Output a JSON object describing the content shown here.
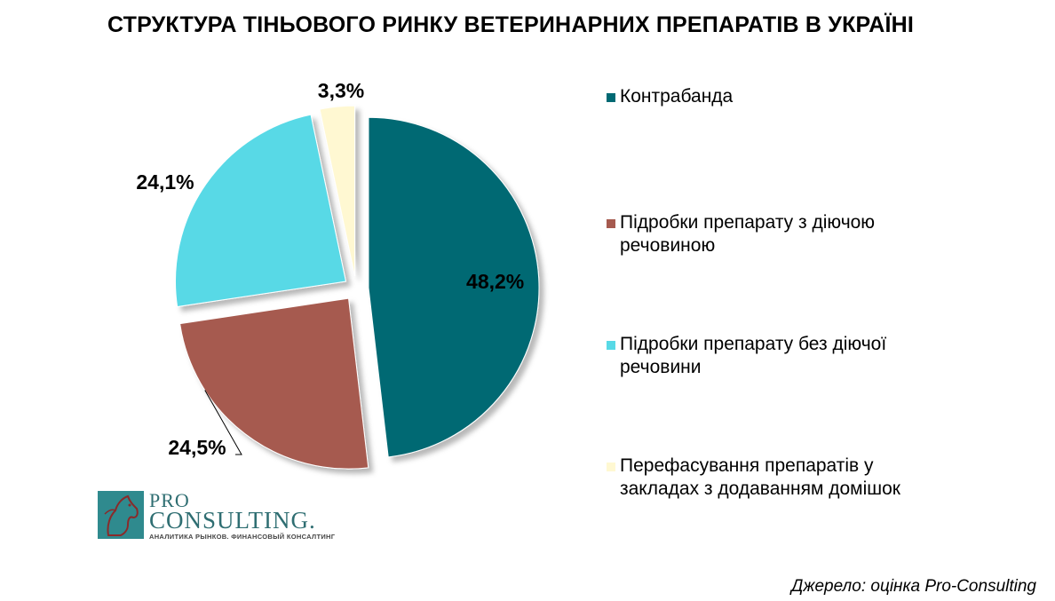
{
  "title": "СТРУКТУРА ТІНЬОВОГО РИНКУ ВЕТЕРИНАРНИХ ПРЕПАРАТІВ В УКРАЇНІ",
  "chart_data": {
    "type": "pie",
    "title": "СТРУКТУРА ТІНЬОВОГО РИНКУ ВЕТЕРИНАРНИХ ПРЕПАРАТІВ В УКРАЇНІ",
    "slices": [
      {
        "label": "Контрабанда",
        "value": 48.2,
        "value_label": "48,2%",
        "color": "#006973"
      },
      {
        "label": "Підробки препарату з діючою речовиною",
        "value": 24.5,
        "value_label": "24,5%",
        "color": "#a65a4f"
      },
      {
        "label": "Підробки препарату без діючої речовини",
        "value": 24.1,
        "value_label": "24,1%",
        "color": "#58d9e6"
      },
      {
        "label": "Перефасування препаратів у закладах з додаванням домішок",
        "value": 3.3,
        "value_label": "3,3%",
        "color": "#fff8d2"
      }
    ],
    "exploded": true,
    "legend_position": "right"
  },
  "logo": {
    "pro": "PRO",
    "consulting": "CONSULTING.",
    "tagline": "АНАЛИТИКА РЫНКОВ. ФИНАНСОВЫЙ КОНСАЛТИНГ"
  },
  "source": "Джерело: оцінка Pro-Consulting"
}
